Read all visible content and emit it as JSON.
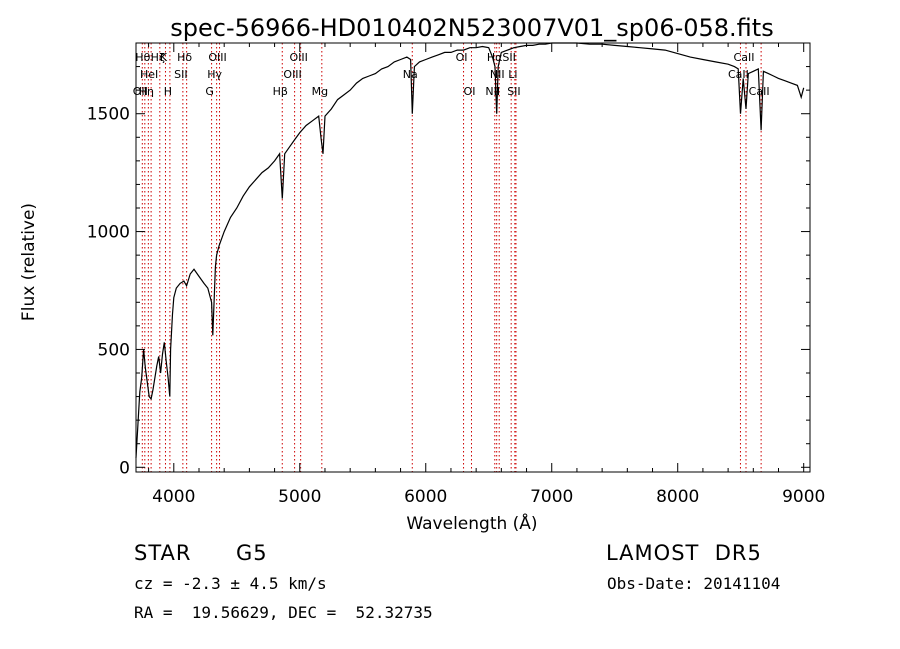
{
  "chart_data": {
    "type": "line",
    "title": "spec-56966-HD010402N523007V01_sp06-058.fits",
    "xlabel": "Wavelength (Å)",
    "ylabel": "Flux (relative)",
    "xlim": [
      3700,
      9050
    ],
    "ylim": [
      -20,
      1800
    ],
    "xticks": [
      4000,
      5000,
      6000,
      7000,
      8000,
      9000
    ],
    "yticks": [
      0,
      500,
      1000,
      1500
    ],
    "xtick_labels": [
      "4000",
      "5000",
      "6000",
      "7000",
      "8000",
      "9000"
    ],
    "ytick_labels": [
      "0",
      "500",
      "1000",
      "1500"
    ],
    "grid": false,
    "series": [
      {
        "x": [
          3700,
          3715,
          3730,
          3745,
          3760,
          3775,
          3790,
          3805,
          3820,
          3835,
          3850,
          3865,
          3880,
          3895,
          3910,
          3925,
          3940,
          3955,
          3968,
          3975,
          3990,
          4000,
          4020,
          4050,
          4080,
          4102,
          4130,
          4160,
          4200,
          4240,
          4270,
          4300,
          4310,
          4330,
          4340,
          4360,
          4400,
          4450,
          4500,
          4550,
          4600,
          4650,
          4700,
          4750,
          4800,
          4840,
          4861,
          4880,
          4920,
          4960,
          5000,
          5050,
          5100,
          5150,
          5170,
          5184,
          5200,
          5250,
          5300,
          5350,
          5400,
          5450,
          5500,
          5550,
          5600,
          5650,
          5700,
          5750,
          5800,
          5850,
          5880,
          5893,
          5910,
          5950,
          6000,
          6050,
          6100,
          6150,
          6200,
          6250,
          6300,
          6350,
          6400,
          6450,
          6500,
          6530,
          6550,
          6563,
          6575,
          6600,
          6650,
          6700,
          6750,
          6800,
          6850,
          6900,
          6950,
          7000,
          7100,
          7200,
          7300,
          7400,
          7500,
          7600,
          7700,
          7800,
          7900,
          8000,
          8100,
          8200,
          8300,
          8400,
          8450,
          8480,
          8498,
          8520,
          8542,
          8560,
          8600,
          8640,
          8662,
          8680,
          8720,
          8760,
          8800,
          8850,
          8900,
          8950,
          8980,
          9000
        ],
        "y": [
          40,
          180,
          320,
          380,
          500,
          420,
          360,
          300,
          290,
          330,
          380,
          430,
          470,
          400,
          480,
          530,
          450,
          380,
          300,
          500,
          650,
          720,
          760,
          780,
          790,
          770,
          820,
          840,
          810,
          780,
          760,
          700,
          560,
          850,
          900,
          940,
          1000,
          1060,
          1100,
          1150,
          1190,
          1220,
          1250,
          1270,
          1300,
          1330,
          1140,
          1330,
          1360,
          1390,
          1420,
          1450,
          1470,
          1490,
          1390,
          1330,
          1490,
          1520,
          1560,
          1580,
          1600,
          1630,
          1650,
          1660,
          1670,
          1690,
          1700,
          1720,
          1730,
          1740,
          1730,
          1500,
          1700,
          1720,
          1730,
          1740,
          1750,
          1760,
          1760,
          1770,
          1770,
          1780,
          1780,
          1785,
          1780,
          1740,
          1700,
          1500,
          1700,
          1760,
          1770,
          1780,
          1785,
          1790,
          1790,
          1795,
          1795,
          1800,
          1800,
          1800,
          1795,
          1795,
          1790,
          1785,
          1780,
          1775,
          1770,
          1755,
          1740,
          1730,
          1720,
          1710,
          1700,
          1690,
          1500,
          1650,
          1520,
          1670,
          1680,
          1690,
          1430,
          1680,
          1670,
          1660,
          1650,
          1640,
          1630,
          1620,
          1570,
          1610
        ]
      }
    ],
    "lines": [
      {
        "x": 3750,
        "label": "OII",
        "row": 2
      },
      {
        "x": 3770,
        "label": "Hθ",
        "row": 0
      },
      {
        "x": 3798,
        "label": "Hη",
        "row": 2
      },
      {
        "x": 3820,
        "label": "HeI",
        "row": 1
      },
      {
        "x": 3889,
        "label": "Hζ",
        "row": 0
      },
      {
        "x": 3934,
        "label": "K",
        "row": 0
      },
      {
        "x": 3969,
        "label": "H",
        "row": 2
      },
      {
        "x": 4072,
        "label": "SII",
        "row": 1
      },
      {
        "x": 4102,
        "label": "Hδ",
        "row": 0
      },
      {
        "x": 4300,
        "label": "G",
        "row": 2
      },
      {
        "x": 4340,
        "label": "Hγ",
        "row": 1
      },
      {
        "x": 4363,
        "label": "OIII",
        "row": 0
      },
      {
        "x": 4861,
        "label": "Hβ",
        "row": 2
      },
      {
        "x": 4959,
        "label": "OIII",
        "row": 1
      },
      {
        "x": 5007,
        "label": "OIII",
        "row": 0
      },
      {
        "x": 5175,
        "label": "Mg",
        "row": 2
      },
      {
        "x": 5893,
        "label": "Na",
        "row": 1
      },
      {
        "x": 6300,
        "label": "OI",
        "row": 0
      },
      {
        "x": 6363,
        "label": "OI",
        "row": 2
      },
      {
        "x": 6548,
        "label": "NII",
        "row": 2
      },
      {
        "x": 6563,
        "label": "Hα",
        "row": 0
      },
      {
        "x": 6583,
        "label": "NII",
        "row": 1
      },
      {
        "x": 6678,
        "label": "SII",
        "row": 0
      },
      {
        "x": 6707,
        "label": "Li",
        "row": 1
      },
      {
        "x": 6716,
        "label": "SII",
        "row": 2
      },
      {
        "x": 8498,
        "label": "CaII",
        "row": 1
      },
      {
        "x": 8542,
        "label": "CaII",
        "row": 0
      },
      {
        "x": 8662,
        "label": "CaII",
        "row": 2
      }
    ]
  },
  "info": {
    "class_label": "STAR",
    "subclass": "G5",
    "cz_text": "cz = -2.3 ± 4.5 km/s",
    "coords_text": "RA =  19.56629, DEC =  52.32735",
    "survey": "LAMOST  DR5",
    "obs_date": "Obs-Date: 20141104"
  },
  "colors": {
    "axis": "#000000",
    "line_marker": "#cc0000",
    "spectrum": "#000000"
  }
}
